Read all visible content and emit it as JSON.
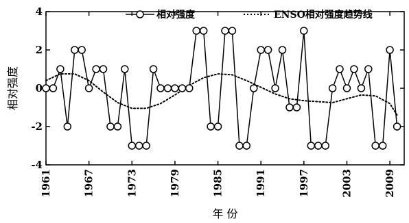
{
  "chart_data": {
    "type": "line",
    "xlabel": "年 份",
    "ylabel": "相对强度",
    "xlim": [
      1961,
      2011
    ],
    "ylim": [
      -4,
      4
    ],
    "xticks": [
      "1961",
      "1967",
      "1973",
      "1979",
      "1985",
      "1991",
      "1997",
      "2003",
      "2009"
    ],
    "yticks": [
      "4",
      "2",
      "0",
      "-2",
      "-4"
    ],
    "legend_position": "top",
    "series": [
      {
        "name": "相对强度",
        "style": "solid-circle",
        "x": [
          1961,
          1962,
          1963,
          1964,
          1965,
          1966,
          1967,
          1968,
          1969,
          1970,
          1971,
          1972,
          1973,
          1974,
          1975,
          1976,
          1977,
          1978,
          1979,
          1980,
          1981,
          1982,
          1983,
          1984,
          1985,
          1986,
          1987,
          1988,
          1989,
          1990,
          1991,
          1992,
          1993,
          1994,
          1995,
          1996,
          1997,
          1998,
          1999,
          2000,
          2001,
          2002,
          2003,
          2004,
          2005,
          2006,
          2007,
          2008,
          2009,
          2010
        ],
        "y": [
          0,
          0,
          1,
          -2,
          2,
          2,
          0,
          1,
          1,
          -2,
          -2,
          1,
          -3,
          -3,
          -3,
          1,
          0,
          0,
          0,
          0,
          0,
          3,
          3,
          -2,
          -2,
          3,
          3,
          -3,
          -3,
          0,
          2,
          2,
          0,
          2,
          -1,
          -1,
          3,
          -3,
          -3,
          -3,
          0,
          1,
          0,
          1,
          0,
          1,
          -3,
          -3,
          2,
          -2
        ]
      },
      {
        "name": "ENSO相对强度趋势线",
        "style": "dotted",
        "x": [
          1961,
          1963,
          1965,
          1967,
          1969,
          1971,
          1973,
          1975,
          1977,
          1979,
          1981,
          1983,
          1985,
          1987,
          1989,
          1991,
          1993,
          1995,
          1997,
          1999,
          2001,
          2003,
          2005,
          2007,
          2009,
          2010
        ],
        "y": [
          0.4,
          0.75,
          0.75,
          0.4,
          -0.2,
          -0.75,
          -1.05,
          -1.05,
          -0.8,
          -0.35,
          0.15,
          0.55,
          0.75,
          0.7,
          0.4,
          0.05,
          -0.3,
          -0.55,
          -0.65,
          -0.7,
          -0.75,
          -0.55,
          -0.35,
          -0.4,
          -0.8,
          -1.4
        ]
      }
    ]
  }
}
